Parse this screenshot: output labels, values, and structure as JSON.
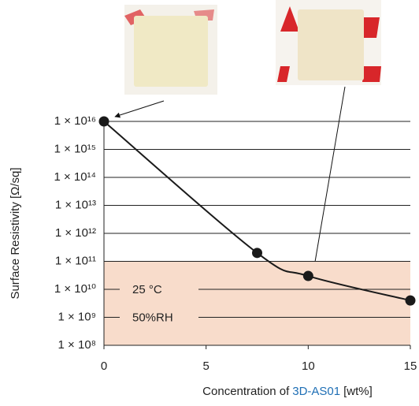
{
  "chart_data": {
    "type": "line",
    "ylabel": "Surface Resistivity [Ω/sq]",
    "xlabel": {
      "prefix": "Concentration of",
      "highlight": "3D-AS01",
      "suffix": "[wt%]",
      "highlight_color": "#1f6fb5"
    },
    "x": [
      0,
      7.5,
      10,
      15
    ],
    "series": [
      {
        "color": "#1a1a1a",
        "values": [
          1e+16,
          200000000000.0,
          30000000000.0,
          4000000000.0
        ]
      }
    ],
    "xlim": [
      0,
      15
    ],
    "xticks": [
      0,
      5,
      10,
      15
    ],
    "ylim": [
      100000000.0,
      1e+16
    ],
    "log_y": true,
    "yticks": [
      {
        "value": 100000000.0,
        "label": "1 × 10⁸"
      },
      {
        "value": 1000000000.0,
        "label": "1 × 10⁹"
      },
      {
        "value": 10000000000.0,
        "label": "1 × 10¹⁰"
      },
      {
        "value": 100000000000.0,
        "label": "1 × 10¹¹"
      },
      {
        "value": 1000000000000.0,
        "label": "1 × 10¹²"
      },
      {
        "value": 10000000000000.0,
        "label": "1 × 10¹³"
      },
      {
        "value": 100000000000000.0,
        "label": "1 × 10¹⁴"
      },
      {
        "value": 1000000000000000.0,
        "label": "1 × 10¹⁵"
      },
      {
        "value": 1e+16,
        "label": "1 × 10¹⁶"
      }
    ],
    "grid": true,
    "shaded_range": [
      100000000.0,
      100000000000.0
    ],
    "shade_color": "#f8dccb",
    "annotations": [
      "25 °C",
      "50%RH"
    ]
  }
}
